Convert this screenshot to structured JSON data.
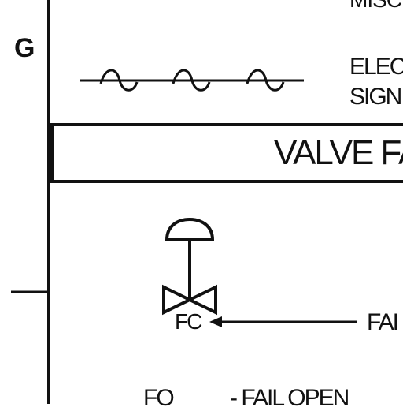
{
  "row_letter": "G",
  "top_text": "MISC",
  "electric_label_line1": "ELEC",
  "electric_label_line2": "SIGN",
  "banner_title": "VALVE FA",
  "valve_tag": "FC",
  "arrow_label": "FAI",
  "bottom_abbrev": "FO",
  "bottom_text": "- FAIL OPEN"
}
